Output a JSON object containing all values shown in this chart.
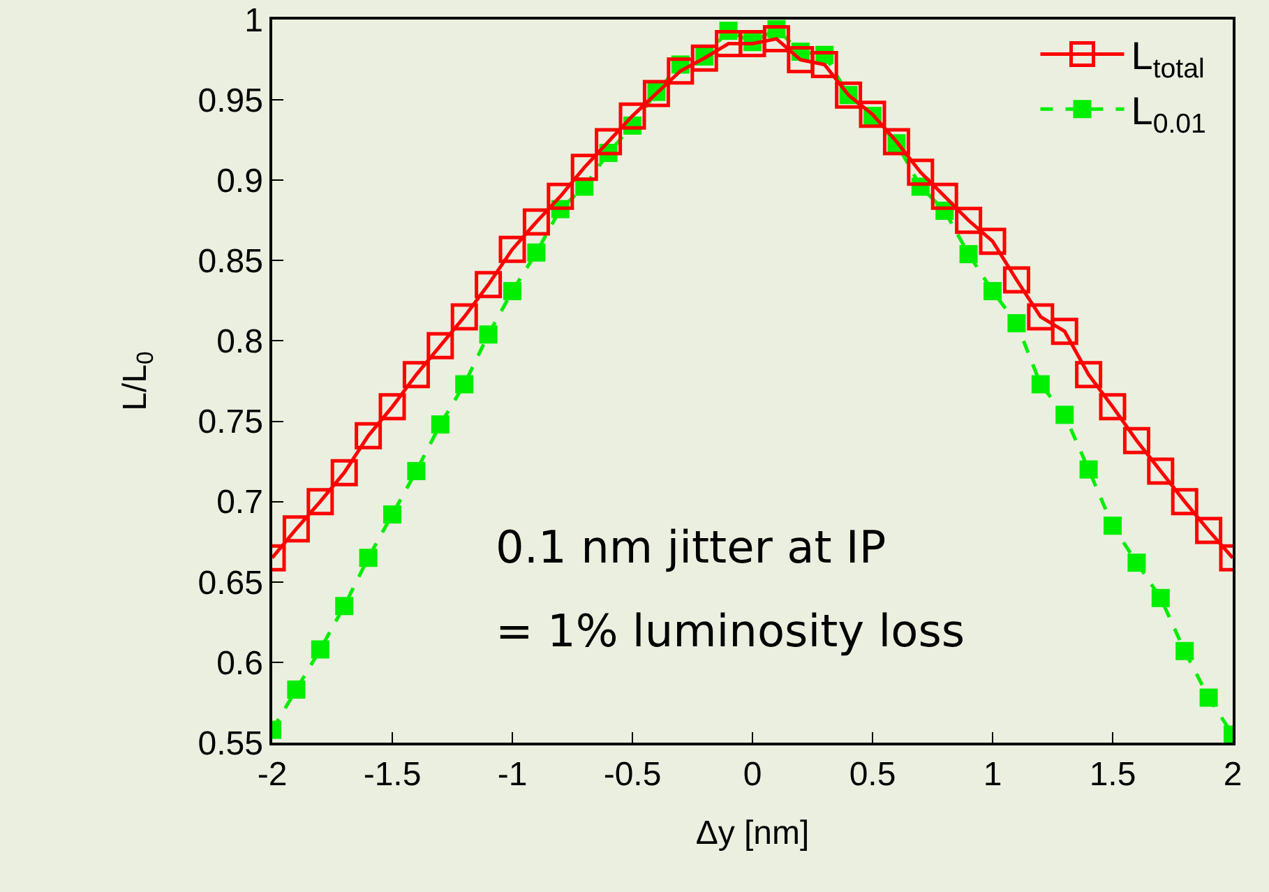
{
  "chart_data": {
    "type": "line",
    "xlabel": "Δy [nm]",
    "ylabel": "L/L$_{0}$",
    "x": [
      -2,
      -1.9,
      -1.8,
      -1.7,
      -1.6,
      -1.5,
      -1.4,
      -1.3,
      -1.2,
      -1.1,
      -1,
      -0.9,
      -0.8,
      -0.7,
      -0.6,
      -0.5,
      -0.4,
      -0.3,
      -0.2,
      -0.1,
      0,
      0.1,
      0.2,
      0.3,
      0.4,
      0.5,
      0.6,
      0.7,
      0.8,
      0.9,
      1,
      1.1,
      1.2,
      1.3,
      1.4,
      1.5,
      1.6,
      1.7,
      1.8,
      1.9,
      2
    ],
    "series": [
      {
        "name": "L$_{total}$",
        "color": "#ff0000",
        "line_style": "solid",
        "values": [
          0.665,
          0.683,
          0.7,
          0.718,
          0.741,
          0.759,
          0.779,
          0.797,
          0.815,
          0.835,
          0.857,
          0.874,
          0.89,
          0.908,
          0.924,
          0.94,
          0.954,
          0.968,
          0.976,
          0.985,
          0.985,
          0.988,
          0.975,
          0.972,
          0.953,
          0.941,
          0.924,
          0.905,
          0.89,
          0.875,
          0.862,
          0.838,
          0.815,
          0.806,
          0.779,
          0.759,
          0.738,
          0.719,
          0.7,
          0.682,
          0.665
        ]
      },
      {
        "name": "L$_{0.01}$",
        "color": "#00ee00",
        "line_style": "dashed",
        "values": [
          0.558,
          0.583,
          0.608,
          0.635,
          0.665,
          0.692,
          0.719,
          0.748,
          0.773,
          0.804,
          0.831,
          0.855,
          0.882,
          0.896,
          0.917,
          0.934,
          0.955,
          0.972,
          0.977,
          0.993,
          0.986,
          0.994,
          0.98,
          0.978,
          0.953,
          0.94,
          0.923,
          0.896,
          0.881,
          0.854,
          0.831,
          0.811,
          0.773,
          0.754,
          0.72,
          0.685,
          0.662,
          0.64,
          0.607,
          0.578,
          0.555
        ]
      }
    ],
    "xlim": [
      -2,
      2
    ],
    "xticks": [
      -2,
      -1.5,
      -1,
      -0.5,
      0,
      0.5,
      1,
      1.5,
      2
    ],
    "ylim": [
      0.55,
      1
    ],
    "yticks": [
      0.55,
      0.6,
      0.65,
      0.7,
      0.75,
      0.8,
      0.85,
      0.9,
      0.95,
      1
    ],
    "marker": "square",
    "grid": false,
    "legend": "top right",
    "annotations": [
      "0.1 nm jitter at IP",
      "= 1% luminosity loss"
    ]
  }
}
